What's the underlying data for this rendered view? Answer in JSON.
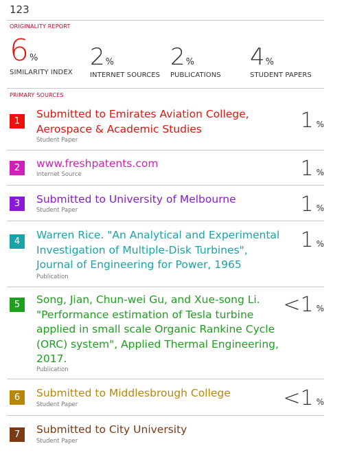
{
  "document": {
    "title": "123"
  },
  "originality": {
    "heading": "ORIGINALITY REPORT",
    "stats": [
      {
        "value": "6",
        "unit": "%",
        "label": "SIMILARITY INDEX"
      },
      {
        "value": "2",
        "unit": "%",
        "label": "INTERNET SOURCES"
      },
      {
        "value": "2",
        "unit": "%",
        "label": "PUBLICATIONS"
      },
      {
        "value": "4",
        "unit": "%",
        "label": "STUDENT PAPERS"
      }
    ]
  },
  "primary_sources": {
    "heading": "PRIMARY SOURCES",
    "items": [
      {
        "num": "1",
        "title": "Submitted to Emirates Aviation College, Aerospace & Academic Studies",
        "type": "Student Paper",
        "value": "1",
        "unit": "%",
        "color": "#e8130d"
      },
      {
        "num": "2",
        "title": "www.freshpatents.com",
        "type": "Internet Source",
        "value": "1",
        "unit": "%",
        "color": "#d020b8"
      },
      {
        "num": "3",
        "title": "Submitted to University of Melbourne",
        "type": "Student Paper",
        "value": "1",
        "unit": "%",
        "color": "#8a1ad6"
      },
      {
        "num": "4",
        "title": "Warren Rice. \"An Analytical and Experimental Investigation of Multiple-Disk Turbines\", Journal of Engineering for Power, 1965",
        "type": "Publication",
        "value": "1",
        "unit": "%",
        "color": "#1aa3a8"
      },
      {
        "num": "5",
        "title": "Song, Jian, Chun-wei Gu, and Xue-song Li. \"Performance estimation of Tesla turbine applied in small scale Organic Rankine Cycle (ORC) system\", Applied Thermal Engineering, 2017.",
        "type": "Publication",
        "value": "<1",
        "unit": "%",
        "color": "#1f9e1f"
      },
      {
        "num": "6",
        "title": "Submitted to Middlesbrough College",
        "type": "Student Paper",
        "value": "<1",
        "unit": "%",
        "color": "#b8860b"
      },
      {
        "num": "7",
        "title": "Submitted to City University",
        "type": "Student Paper",
        "value": "",
        "unit": "",
        "color": "#7a3a14"
      }
    ]
  }
}
